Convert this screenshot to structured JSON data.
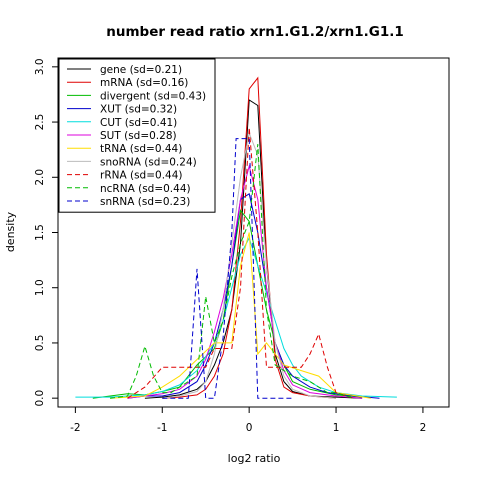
{
  "chart_data": {
    "type": "line",
    "title": "number read ratio xrn1.G1.2/xrn1.G1.1",
    "xlabel": "log2 ratio",
    "ylabel": "density",
    "xlim": [
      -2.2,
      2.3
    ],
    "ylim": [
      -0.08,
      3.08
    ],
    "xticks": [
      -2,
      -1,
      0,
      1,
      2
    ],
    "yticks": [
      0.0,
      0.5,
      1.0,
      1.5,
      2.0,
      2.5,
      3.0
    ],
    "xtick_labels": [
      "-2",
      "-1",
      "0",
      "1",
      "2"
    ],
    "ytick_labels": [
      "0.0",
      "0.5",
      "1.0",
      "1.5",
      "2.0",
      "2.5",
      "3.0"
    ],
    "grid": false,
    "legend_position": "top-left",
    "series": [
      {
        "name": "gene (sd=0.21)",
        "color": "#000000",
        "dash": "solid",
        "points": [
          [
            -1.2,
            0
          ],
          [
            -1.0,
            0.01
          ],
          [
            -0.8,
            0.03
          ],
          [
            -0.6,
            0.08
          ],
          [
            -0.5,
            0.15
          ],
          [
            -0.4,
            0.3
          ],
          [
            -0.3,
            0.5
          ],
          [
            -0.2,
            0.8
          ],
          [
            -0.1,
            1.4
          ],
          [
            0.0,
            2.7
          ],
          [
            0.1,
            2.65
          ],
          [
            0.2,
            1.2
          ],
          [
            0.3,
            0.4
          ],
          [
            0.4,
            0.15
          ],
          [
            0.5,
            0.06
          ],
          [
            0.7,
            0.02
          ],
          [
            1.0,
            0.01
          ],
          [
            1.3,
            0
          ]
        ]
      },
      {
        "name": "mRNA (sd=0.16)",
        "color": "#df0000",
        "dash": "solid",
        "points": [
          [
            -1.0,
            0
          ],
          [
            -0.8,
            0.01
          ],
          [
            -0.6,
            0.03
          ],
          [
            -0.5,
            0.08
          ],
          [
            -0.4,
            0.2
          ],
          [
            -0.3,
            0.4
          ],
          [
            -0.2,
            0.8
          ],
          [
            -0.1,
            1.6
          ],
          [
            0.0,
            2.8
          ],
          [
            0.1,
            2.9
          ],
          [
            0.2,
            1.3
          ],
          [
            0.3,
            0.35
          ],
          [
            0.4,
            0.1
          ],
          [
            0.5,
            0.05
          ],
          [
            0.7,
            0.02
          ],
          [
            1.0,
            0
          ]
        ]
      },
      {
        "name": "divergent (sd=0.43)",
        "color": "#00bb00",
        "dash": "solid",
        "points": [
          [
            -1.8,
            0
          ],
          [
            -1.6,
            0.02
          ],
          [
            -1.4,
            0.04
          ],
          [
            -1.2,
            0.03
          ],
          [
            -1.0,
            0.06
          ],
          [
            -0.8,
            0.1
          ],
          [
            -0.6,
            0.3
          ],
          [
            -0.4,
            0.45
          ],
          [
            -0.3,
            0.7
          ],
          [
            -0.2,
            1.2
          ],
          [
            -0.1,
            1.7
          ],
          [
            0.0,
            1.6
          ],
          [
            0.1,
            1.2
          ],
          [
            0.2,
            0.8
          ],
          [
            0.3,
            0.5
          ],
          [
            0.4,
            0.3
          ],
          [
            0.5,
            0.15
          ],
          [
            0.7,
            0.08
          ],
          [
            1.0,
            0.03
          ],
          [
            1.3,
            0.01
          ]
        ]
      },
      {
        "name": "XUT (sd=0.32)",
        "color": "#0000cc",
        "dash": "solid",
        "points": [
          [
            -1.4,
            0
          ],
          [
            -1.2,
            0.02
          ],
          [
            -1.0,
            0.02
          ],
          [
            -0.8,
            0.05
          ],
          [
            -0.6,
            0.15
          ],
          [
            -0.5,
            0.3
          ],
          [
            -0.4,
            0.5
          ],
          [
            -0.3,
            0.8
          ],
          [
            -0.2,
            1.2
          ],
          [
            -0.1,
            1.8
          ],
          [
            0.0,
            1.85
          ],
          [
            0.1,
            1.5
          ],
          [
            0.2,
            1.0
          ],
          [
            0.3,
            0.5
          ],
          [
            0.4,
            0.3
          ],
          [
            0.5,
            0.2
          ],
          [
            0.7,
            0.1
          ],
          [
            0.9,
            0.05
          ],
          [
            1.2,
            0.02
          ],
          [
            1.5,
            0
          ]
        ]
      },
      {
        "name": "CUT (sd=0.41)",
        "color": "#00dddd",
        "dash": "solid",
        "points": [
          [
            -2.0,
            0.01
          ],
          [
            -1.6,
            0.01
          ],
          [
            -1.2,
            0.03
          ],
          [
            -1.0,
            0.06
          ],
          [
            -0.8,
            0.12
          ],
          [
            -0.6,
            0.25
          ],
          [
            -0.4,
            0.5
          ],
          [
            -0.3,
            0.7
          ],
          [
            -0.2,
            1.0
          ],
          [
            -0.1,
            1.3
          ],
          [
            0.0,
            1.45
          ],
          [
            0.1,
            1.2
          ],
          [
            0.2,
            0.95
          ],
          [
            0.3,
            0.7
          ],
          [
            0.4,
            0.45
          ],
          [
            0.5,
            0.3
          ],
          [
            0.6,
            0.2
          ],
          [
            0.8,
            0.1
          ],
          [
            1.0,
            0.05
          ],
          [
            1.3,
            0.02
          ],
          [
            1.7,
            0.01
          ]
        ]
      },
      {
        "name": "SUT (sd=0.28)",
        "color": "#dd00dd",
        "dash": "solid",
        "points": [
          [
            -1.4,
            0
          ],
          [
            -1.2,
            0.02
          ],
          [
            -1.0,
            0.04
          ],
          [
            -0.8,
            0.08
          ],
          [
            -0.6,
            0.2
          ],
          [
            -0.5,
            0.35
          ],
          [
            -0.4,
            0.6
          ],
          [
            -0.3,
            0.9
          ],
          [
            -0.2,
            1.3
          ],
          [
            -0.1,
            1.8
          ],
          [
            0.0,
            2.1
          ],
          [
            0.1,
            1.8
          ],
          [
            0.2,
            1.0
          ],
          [
            0.3,
            0.5
          ],
          [
            0.4,
            0.25
          ],
          [
            0.5,
            0.12
          ],
          [
            0.7,
            0.05
          ],
          [
            1.0,
            0.02
          ],
          [
            1.3,
            0
          ]
        ]
      },
      {
        "name": "tRNA (sd=0.44)",
        "color": "#ffdd00",
        "dash": "solid",
        "points": [
          [
            -1.6,
            0
          ],
          [
            -1.2,
            0.02
          ],
          [
            -1.0,
            0.1
          ],
          [
            -0.8,
            0.2
          ],
          [
            -0.6,
            0.35
          ],
          [
            -0.4,
            0.5
          ],
          [
            -0.2,
            0.5
          ],
          [
            -0.1,
            1.2
          ],
          [
            0.0,
            1.5
          ],
          [
            0.1,
            0.4
          ],
          [
            0.2,
            0.5
          ],
          [
            0.4,
            0.3
          ],
          [
            0.6,
            0.25
          ],
          [
            0.8,
            0.2
          ],
          [
            1.0,
            0.05
          ],
          [
            1.4,
            0
          ]
        ]
      },
      {
        "name": "snoRNA (sd=0.24)",
        "color": "#bbbbbb",
        "dash": "solid",
        "points": [
          [
            -1.0,
            0
          ],
          [
            -0.8,
            0.02
          ],
          [
            -0.6,
            0.06
          ],
          [
            -0.5,
            0.15
          ],
          [
            -0.4,
            0.4
          ],
          [
            -0.3,
            0.8
          ],
          [
            -0.2,
            1.4
          ],
          [
            -0.1,
            2.0
          ],
          [
            0.0,
            2.4
          ],
          [
            0.1,
            2.2
          ],
          [
            0.2,
            1.2
          ],
          [
            0.3,
            0.5
          ],
          [
            0.4,
            0.2
          ],
          [
            0.5,
            0.08
          ],
          [
            0.7,
            0.02
          ],
          [
            1.0,
            0
          ]
        ]
      },
      {
        "name": "rRNA (sd=0.44)",
        "color": "#df0000",
        "dash": "dashed",
        "points": [
          [
            -1.4,
            0
          ],
          [
            -1.2,
            0.1
          ],
          [
            -1.0,
            0.28
          ],
          [
            -0.8,
            0.28
          ],
          [
            -0.6,
            0.28
          ],
          [
            -0.5,
            0.28
          ],
          [
            -0.4,
            0.45
          ],
          [
            -0.3,
            0.45
          ],
          [
            -0.2,
            0.45
          ],
          [
            -0.1,
            1.0
          ],
          [
            0.0,
            2.45
          ],
          [
            0.1,
            1.5
          ],
          [
            0.2,
            0.28
          ],
          [
            0.4,
            0.28
          ],
          [
            0.6,
            0.28
          ],
          [
            0.7,
            0.4
          ],
          [
            0.8,
            0.58
          ],
          [
            0.9,
            0.28
          ],
          [
            1.0,
            0.05
          ],
          [
            1.2,
            0
          ]
        ]
      },
      {
        "name": "ncRNA (sd=0.44)",
        "color": "#00bb00",
        "dash": "dashed",
        "points": [
          [
            -1.6,
            0
          ],
          [
            -1.4,
            0.02
          ],
          [
            -1.3,
            0.2
          ],
          [
            -1.2,
            0.47
          ],
          [
            -1.1,
            0.2
          ],
          [
            -1.0,
            0.05
          ],
          [
            -0.9,
            0.05
          ],
          [
            -0.8,
            0.1
          ],
          [
            -0.6,
            0.2
          ],
          [
            -0.5,
            0.92
          ],
          [
            -0.4,
            0.5
          ],
          [
            -0.3,
            0.7
          ],
          [
            -0.2,
            1.1
          ],
          [
            -0.1,
            1.4
          ],
          [
            0.0,
            1.6
          ],
          [
            0.1,
            2.3
          ],
          [
            0.2,
            0.8
          ],
          [
            0.3,
            0.3
          ],
          [
            0.5,
            0.2
          ],
          [
            0.7,
            0.15
          ],
          [
            0.9,
            0.05
          ],
          [
            1.0,
            0.05
          ],
          [
            1.2,
            0
          ]
        ]
      },
      {
        "name": "snRNA (sd=0.23)",
        "color": "#0000cc",
        "dash": "dashed",
        "points": [
          [
            -1.0,
            0
          ],
          [
            -0.7,
            0
          ],
          [
            -0.6,
            1.17
          ],
          [
            -0.5,
            0
          ],
          [
            -0.4,
            0
          ],
          [
            -0.3,
            0.55
          ],
          [
            -0.2,
            1.5
          ],
          [
            -0.15,
            2.35
          ],
          [
            0.0,
            2.35
          ],
          [
            0.05,
            1.2
          ],
          [
            0.1,
            0
          ],
          [
            0.3,
            0
          ],
          [
            0.5,
            0
          ]
        ]
      }
    ]
  }
}
